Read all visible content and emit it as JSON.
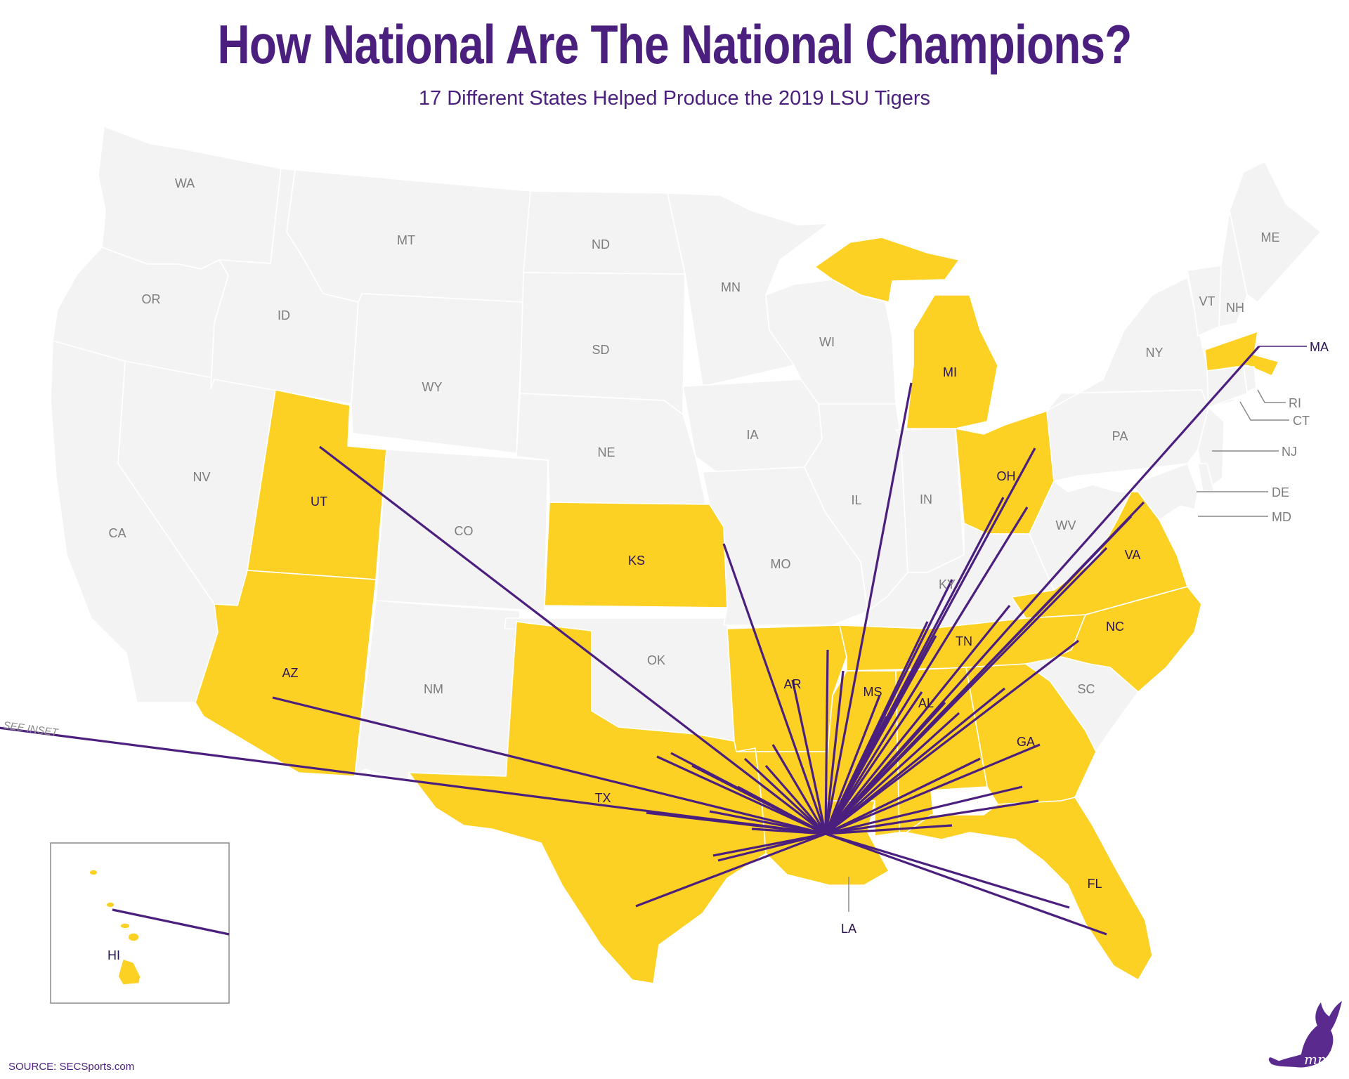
{
  "title": "How National Are The National Champions?",
  "subtitle": "17 Different States Helped Produce the 2019 LSU Tigers",
  "source": "SOURCE: SECSports.com",
  "see_inset": "SEE INSET",
  "colors": {
    "highlight": "#fcd124",
    "base": "#f3f3f3",
    "border": "#ffffff",
    "line": "#4b1f7e"
  },
  "states": {
    "WA": {
      "label": "WA",
      "hl": false
    },
    "OR": {
      "label": "OR",
      "hl": false
    },
    "CA": {
      "label": "CA",
      "hl": false
    },
    "NV": {
      "label": "NV",
      "hl": false
    },
    "ID": {
      "label": "ID",
      "hl": false
    },
    "MT": {
      "label": "MT",
      "hl": false
    },
    "WY": {
      "label": "WY",
      "hl": false
    },
    "UT": {
      "label": "UT",
      "hl": true
    },
    "AZ": {
      "label": "AZ",
      "hl": true
    },
    "CO": {
      "label": "CO",
      "hl": false
    },
    "NM": {
      "label": "NM",
      "hl": false
    },
    "ND": {
      "label": "ND",
      "hl": false
    },
    "SD": {
      "label": "SD",
      "hl": false
    },
    "NE": {
      "label": "NE",
      "hl": false
    },
    "KS": {
      "label": "KS",
      "hl": true
    },
    "OK": {
      "label": "OK",
      "hl": false
    },
    "TX": {
      "label": "TX",
      "hl": true
    },
    "MN": {
      "label": "MN",
      "hl": false
    },
    "IA": {
      "label": "IA",
      "hl": false
    },
    "MO": {
      "label": "MO",
      "hl": false
    },
    "AR": {
      "label": "AR",
      "hl": true
    },
    "LA": {
      "label": "LA",
      "hl": true
    },
    "WI": {
      "label": "WI",
      "hl": false
    },
    "IL": {
      "label": "IL",
      "hl": false
    },
    "MI": {
      "label": "MI",
      "hl": true
    },
    "IN": {
      "label": "IN",
      "hl": false
    },
    "OH": {
      "label": "OH",
      "hl": true
    },
    "KY": {
      "label": "KY",
      "hl": false
    },
    "TN": {
      "label": "TN",
      "hl": true
    },
    "MS": {
      "label": "MS",
      "hl": true
    },
    "AL": {
      "label": "AL",
      "hl": true
    },
    "GA": {
      "label": "GA",
      "hl": true
    },
    "FL": {
      "label": "FL",
      "hl": true
    },
    "SC": {
      "label": "SC",
      "hl": false
    },
    "NC": {
      "label": "NC",
      "hl": true
    },
    "VA": {
      "label": "VA",
      "hl": true
    },
    "WV": {
      "label": "WV",
      "hl": false
    },
    "PA": {
      "label": "PA",
      "hl": false
    },
    "NY": {
      "label": "NY",
      "hl": false
    },
    "VT": {
      "label": "VT",
      "hl": false
    },
    "NH": {
      "label": "NH",
      "hl": false
    },
    "ME": {
      "label": "ME",
      "hl": false
    },
    "MA": {
      "label": "MA",
      "hl": true
    },
    "RI": {
      "label": "RI",
      "hl": false
    },
    "CT": {
      "label": "CT",
      "hl": false
    },
    "NJ": {
      "label": "NJ",
      "hl": false
    },
    "DE": {
      "label": "DE",
      "hl": false
    },
    "MD": {
      "label": "MD",
      "hl": false
    },
    "HI": {
      "label": "HI",
      "hl": true
    }
  }
}
